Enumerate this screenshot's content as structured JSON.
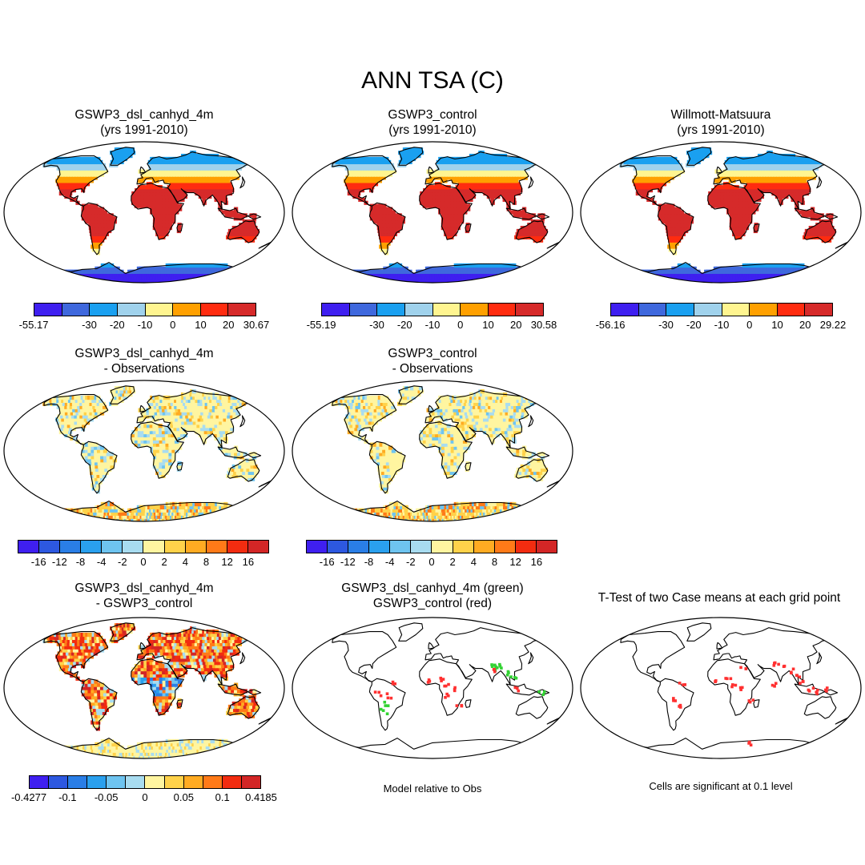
{
  "title": "ANN TSA (C)",
  "colors": {
    "abs": [
      "#3f1ff0",
      "#3f68dd",
      "#1aa0f0",
      "#a0d2ec",
      "#fff590",
      "#ffa000",
      "#ff2c10",
      "#d62a2a"
    ],
    "anom": [
      "#3f1ff0",
      "#2d58e0",
      "#2a7ee6",
      "#2aa0ee",
      "#6ec4f0",
      "#a8dcf0",
      "#fff5a0",
      "#ffd24a",
      "#ffab22",
      "#ff7a18",
      "#f22c10",
      "#d32626"
    ],
    "t_test": [
      "#3f1ff0",
      "#2d58e0",
      "#2a7ee6",
      "#2aa0ee",
      "#6ec4f0",
      "#a8dcf0",
      "#fff5a0",
      "#ffd24a",
      "#ffab22",
      "#ff7a18",
      "#f22c10",
      "#d32626"
    ]
  },
  "panels": [
    {
      "id": "p1",
      "title_line1": "GSWP3_dsl_canhyd_4m",
      "title_line2": "(yrs 1991-2010)",
      "kind": "abs",
      "colorbar": {
        "ticks": [
          "-55.17",
          "-30",
          "-20",
          "-10",
          "0",
          "10",
          "20",
          "30.67"
        ]
      }
    },
    {
      "id": "p2",
      "title_line1": "GSWP3_control",
      "title_line2": "(yrs 1991-2010)",
      "kind": "abs",
      "colorbar": {
        "ticks": [
          "-55.19",
          "-30",
          "-20",
          "-10",
          "0",
          "10",
          "20",
          "30.58"
        ]
      }
    },
    {
      "id": "p3",
      "title_line1": "Willmott-Matsuura",
      "title_line2": "(yrs 1991-2010)",
      "kind": "abs",
      "colorbar": {
        "ticks": [
          "-56.16",
          "-30",
          "-20",
          "-10",
          "0",
          "10",
          "20",
          "29.22"
        ]
      }
    },
    {
      "id": "p4",
      "title_line1": "GSWP3_dsl_canhyd_4m",
      "title_line2": "- Observations",
      "kind": "bias",
      "colorbar": {
        "ticks": [
          "-16",
          "-12",
          "-8",
          "-4",
          "-2",
          "0",
          "2",
          "4",
          "8",
          "12",
          "16"
        ]
      }
    },
    {
      "id": "p5",
      "title_line1": "GSWP3_control",
      "title_line2": "- Observations",
      "kind": "bias",
      "colorbar": {
        "ticks": [
          "-16",
          "-12",
          "-8",
          "-4",
          "-2",
          "0",
          "2",
          "4",
          "8",
          "12",
          "16"
        ]
      }
    },
    {
      "id": "p6",
      "title_line1": "GSWP3_dsl_canhyd_4m",
      "title_line2": "- GSWP3_control",
      "kind": "diff",
      "colorbar": {
        "ticks": [
          "-0.4277",
          "-0.1",
          "-0.05",
          "0",
          "0.05",
          "0.1",
          "0.4185"
        ]
      }
    },
    {
      "id": "p7",
      "title_line1": "GSWP3_dsl_canhyd_4m (green)",
      "title_line2": "GSWP3_control (red)",
      "kind": "dots",
      "note": "Model relative to Obs"
    },
    {
      "id": "p8",
      "title_line1": "T-Test of two Case means at each grid point",
      "title_line2": "",
      "kind": "tdots",
      "note": "Cells are significant at 0.1 level"
    }
  ]
}
